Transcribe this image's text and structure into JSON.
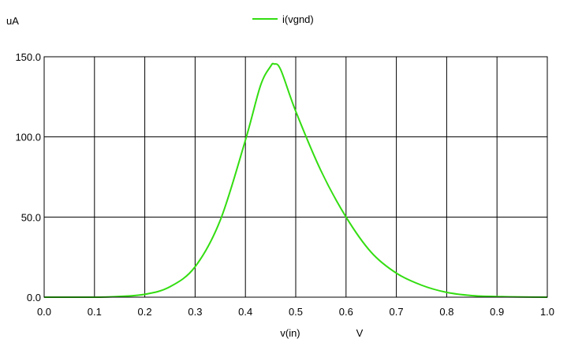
{
  "chart_data": {
    "type": "line",
    "y_unit": "uA",
    "x_unit": "V",
    "xlabel": "v(in)",
    "xlim": [
      0.0,
      1.0
    ],
    "ylim": [
      0.0,
      150.0
    ],
    "x_ticks": [
      0.0,
      0.1,
      0.2,
      0.3,
      0.4,
      0.5,
      0.6,
      0.7,
      0.8,
      0.9,
      1.0
    ],
    "x_tick_labels": [
      "0.0",
      "0.1",
      "0.2",
      "0.3",
      "0.4",
      "0.5",
      "0.6",
      "0.7",
      "0.8",
      "0.9",
      "1.0"
    ],
    "y_ticks": [
      0.0,
      50.0,
      100.0,
      150.0
    ],
    "y_tick_labels": [
      "0.0",
      "50.0",
      "100.0",
      "150.0"
    ],
    "grid": true,
    "legend_position": "top-center",
    "series": [
      {
        "name": "i(vgnd)",
        "color": "#33dd11",
        "x": [
          0.0,
          0.1,
          0.14,
          0.2,
          0.25,
          0.3,
          0.35,
          0.4,
          0.43,
          0.45,
          0.457,
          0.47,
          0.5,
          0.55,
          0.6,
          0.65,
          0.7,
          0.75,
          0.8,
          0.85,
          0.9,
          0.95,
          1.0
        ],
        "y": [
          0.0,
          0.0,
          0.3,
          1.8,
          6.5,
          19.0,
          48.0,
          98.0,
          132.0,
          144.0,
          145.5,
          142.0,
          116.0,
          79.0,
          50.0,
          28.0,
          15.0,
          7.5,
          3.0,
          1.0,
          0.4,
          0.1,
          0.0
        ]
      }
    ]
  }
}
